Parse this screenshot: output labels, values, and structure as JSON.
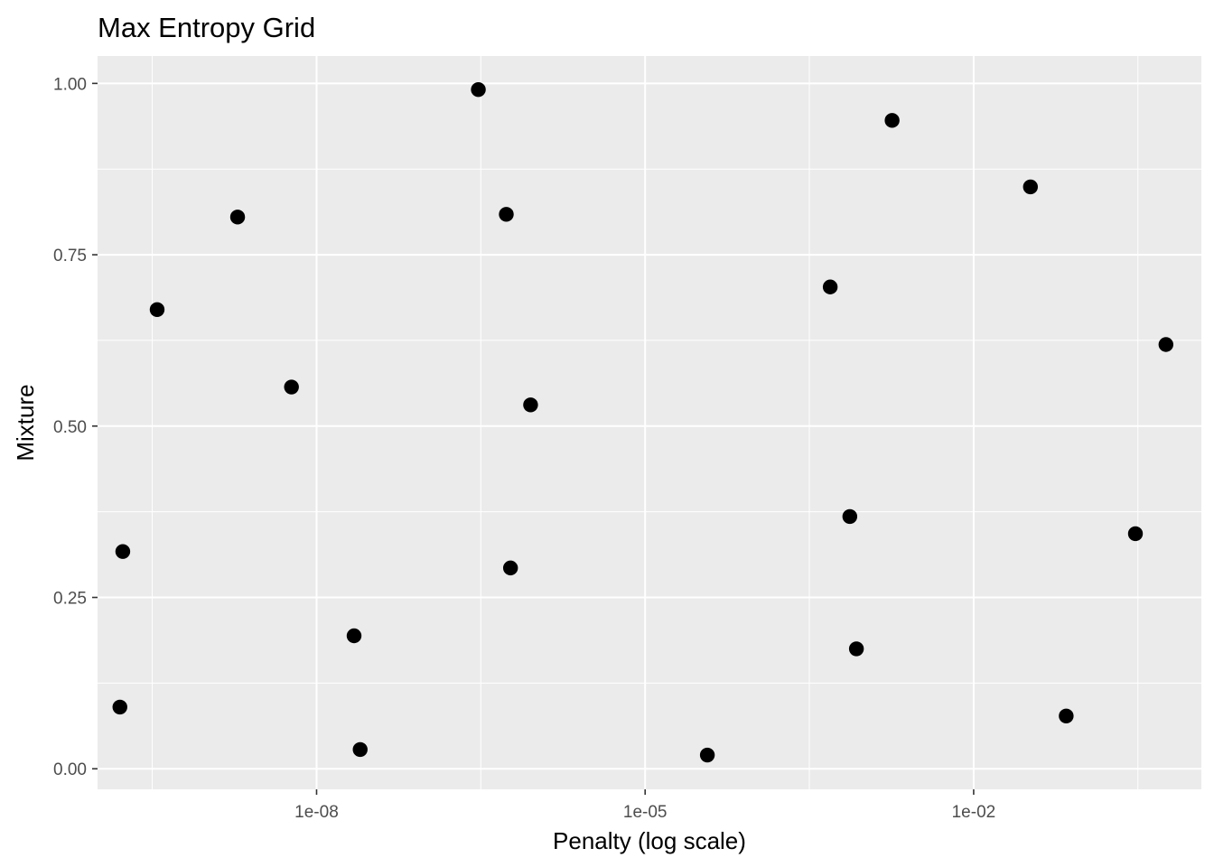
{
  "chart_data": {
    "type": "scatter",
    "title": "Max Entropy Grid",
    "xlabel": "Penalty (log scale)",
    "ylabel": "Mixture",
    "x_scale": "log10",
    "xlim": [
      1e-10,
      1.2
    ],
    "ylim": [
      -0.03,
      1.04
    ],
    "x_ticks": [
      {
        "value": 1e-08,
        "label": "1e-08"
      },
      {
        "value": 1e-05,
        "label": "1e-05"
      },
      {
        "value": 0.01,
        "label": "1e-02"
      }
    ],
    "x_minor_ticks": [
      3.16e-10,
      3.16e-07,
      0.000316,
      0.316
    ],
    "y_ticks": [
      {
        "value": 0.0,
        "label": "0.00"
      },
      {
        "value": 0.25,
        "label": "0.25"
      },
      {
        "value": 0.5,
        "label": "0.50"
      },
      {
        "value": 0.75,
        "label": "0.75"
      },
      {
        "value": 1.0,
        "label": "1.00"
      }
    ],
    "y_minor_ticks": [
      0.125,
      0.375,
      0.625,
      0.875
    ],
    "grid": true,
    "panel_background": "#ebebeb",
    "grid_color": "#ffffff",
    "point_color": "#000000",
    "points": [
      {
        "x": 1.6e-10,
        "y": 0.09
      },
      {
        "x": 1.7e-10,
        "y": 0.317
      },
      {
        "x": 3.5e-10,
        "y": 0.67
      },
      {
        "x": 1.9e-09,
        "y": 0.805
      },
      {
        "x": 5.9e-09,
        "y": 0.557
      },
      {
        "x": 2.2e-08,
        "y": 0.194
      },
      {
        "x": 2.5e-08,
        "y": 0.028
      },
      {
        "x": 3e-07,
        "y": 0.991
      },
      {
        "x": 5.4e-07,
        "y": 0.809
      },
      {
        "x": 5.9e-07,
        "y": 0.293
      },
      {
        "x": 9e-07,
        "y": 0.531
      },
      {
        "x": 3.7e-05,
        "y": 0.02
      },
      {
        "x": 0.00049,
        "y": 0.703
      },
      {
        "x": 0.00074,
        "y": 0.368
      },
      {
        "x": 0.00085,
        "y": 0.175
      },
      {
        "x": 0.0018,
        "y": 0.946
      },
      {
        "x": 0.033,
        "y": 0.849
      },
      {
        "x": 0.07,
        "y": 0.077
      },
      {
        "x": 0.3,
        "y": 0.343
      },
      {
        "x": 0.57,
        "y": 0.619
      }
    ]
  }
}
